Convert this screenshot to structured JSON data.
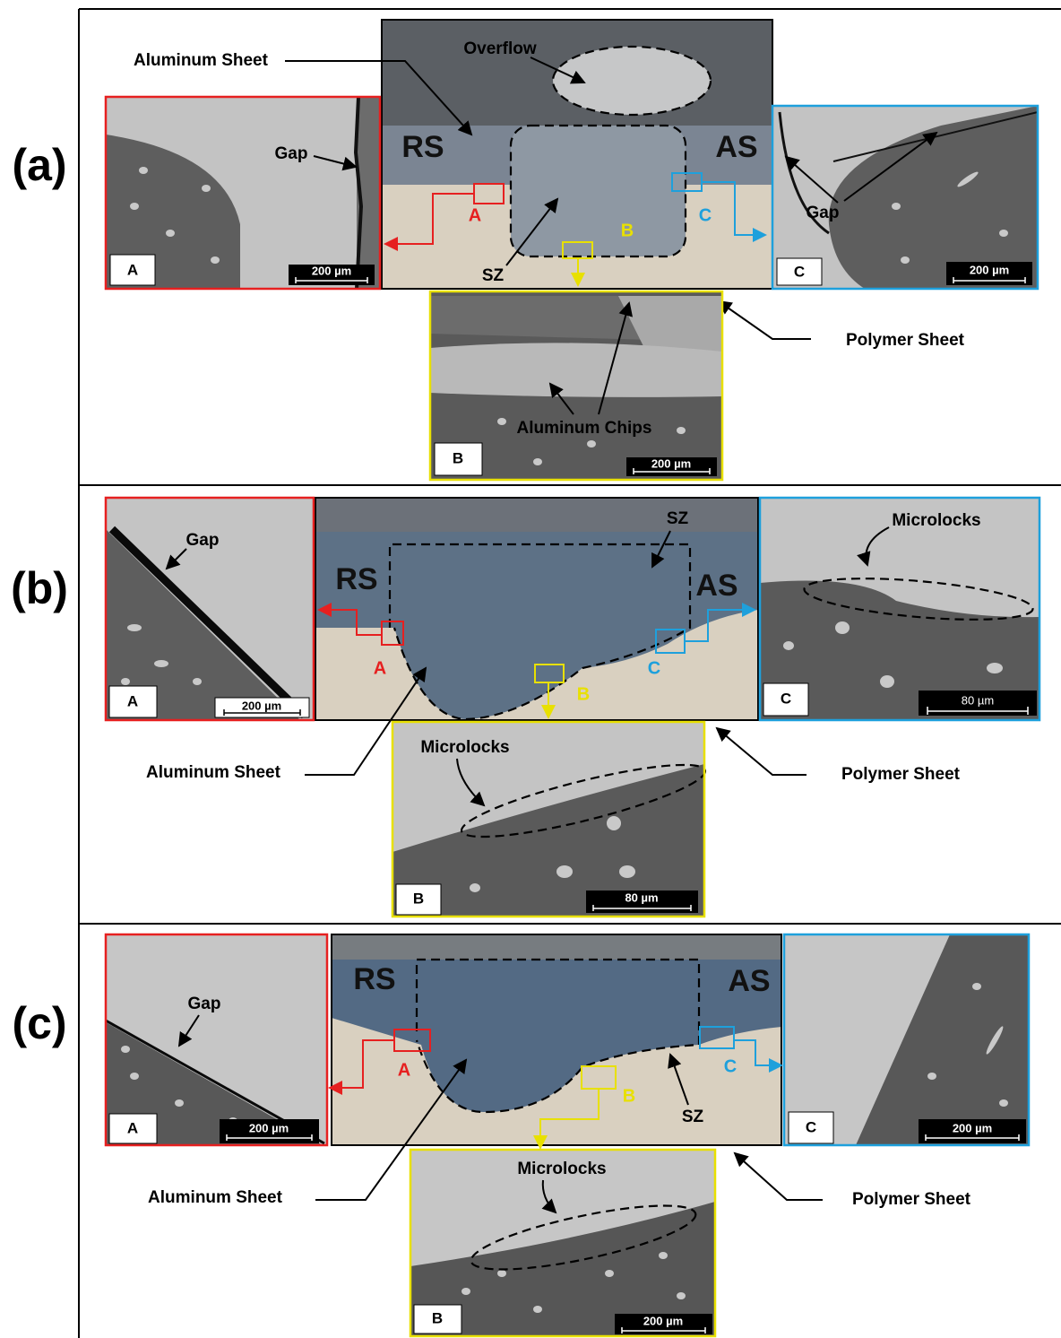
{
  "panels": [
    {
      "label": "(a)",
      "aluminum_sheet": "Aluminum Sheet",
      "overflow": "Overflow",
      "rs": "RS",
      "as": "AS",
      "sz": "SZ",
      "polymer_sheet": "Polymer Sheet",
      "markers": [
        "A",
        "B",
        "C"
      ],
      "insets": [
        {
          "label": "A",
          "scale": "200 µm",
          "annotation": "Gap"
        },
        {
          "label": "B",
          "scale": "200 µm",
          "annotation": "Aluminum Chips"
        },
        {
          "label": "C",
          "scale": "200 µm",
          "annotation": "Gap"
        }
      ]
    },
    {
      "label": "(b)",
      "aluminum_sheet": "Aluminum Sheet",
      "rs": "RS",
      "as": "AS",
      "sz": "SZ",
      "polymer_sheet": "Polymer Sheet",
      "markers": [
        "A",
        "B",
        "C"
      ],
      "insets": [
        {
          "label": "A",
          "scale": "200 µm",
          "annotation": "Gap"
        },
        {
          "label": "B",
          "scale": "80 µm",
          "annotation": "Microlocks"
        },
        {
          "label": "C",
          "scale": "80 µm",
          "annotation": "Microlocks"
        }
      ]
    },
    {
      "label": "(c)",
      "aluminum_sheet": "Aluminum Sheet",
      "rs": "RS",
      "as": "AS",
      "sz": "SZ",
      "polymer_sheet": "Polymer Sheet",
      "markers": [
        "A",
        "B",
        "C"
      ],
      "insets": [
        {
          "label": "A",
          "scale": "200 µm",
          "annotation": "Gap"
        },
        {
          "label": "B",
          "scale": "200 µm",
          "annotation": "Microlocks"
        },
        {
          "label": "C",
          "scale": "200 µm"
        }
      ]
    }
  ]
}
